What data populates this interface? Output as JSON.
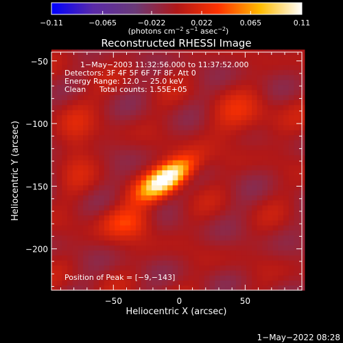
{
  "chart_data": {
    "type": "heatmap",
    "title": "Reconstructed RHESSI Image",
    "xlabel": "Heliocentric X (arcsec)",
    "ylabel": "Heliocentric Y (arcsec)",
    "xlim": [
      -97,
      93
    ],
    "ylim": [
      -233,
      -43
    ],
    "xticks": [
      -50,
      0,
      50
    ],
    "xtick_labels": [
      "−50",
      "0",
      "50"
    ],
    "yticks": [
      -50,
      -100,
      -150,
      -200
    ],
    "ytick_labels": [
      "−50",
      "−100",
      "−150",
      "−200"
    ],
    "colorbar": {
      "range": [
        -0.11,
        0.11
      ],
      "ticks": [
        -0.11,
        -0.065,
        -0.022,
        0.022,
        0.065,
        0.11
      ],
      "tick_labels": [
        "−0.11",
        "−0.065",
        "−0.022",
        "0.022",
        "0.065",
        "0.11"
      ],
      "unit_main": "(photons cm",
      "unit_sup1": "−2",
      "unit_mid1": " s",
      "unit_sup2": "−1",
      "unit_mid2": " asec",
      "unit_sup3": "−2",
      "unit_end": ")",
      "colors": [
        "#0000ff",
        "#5a2aa8",
        "#6a3a78",
        "#b01818",
        "#ff3300",
        "#ffbb00",
        "#ffffff"
      ]
    },
    "annotations": [
      "1−May−2003 11:32:56.000 to 11:37:52.000",
      "Detectors: 3F 4F 5F 6F 7F 8F, Att 0",
      "Energy Range: 12.0 − 25.0 keV",
      "Clean",
      "Total counts: 1.55E+05"
    ],
    "peak_label": "Position of Peak = [−9,−143]",
    "peak": [
      -9,
      -143
    ],
    "pixel_size_arcsec": 4,
    "sources": [
      {
        "x": -9,
        "y": -143,
        "sx": 16,
        "sy": 7,
        "angle_deg": 35,
        "amp": 0.13
      },
      {
        "x": -40,
        "y": -178,
        "sx": 14,
        "sy": 9,
        "angle_deg": 0,
        "amp": 0.04
      },
      {
        "x": 50,
        "y": -95,
        "sx": 18,
        "sy": 12,
        "angle_deg": 0,
        "amp": 0.025
      },
      {
        "x": -80,
        "y": -110,
        "sx": 10,
        "sy": 25,
        "angle_deg": 0,
        "amp": 0.02
      }
    ]
  },
  "footer_date": "1−May−2022 08:28"
}
